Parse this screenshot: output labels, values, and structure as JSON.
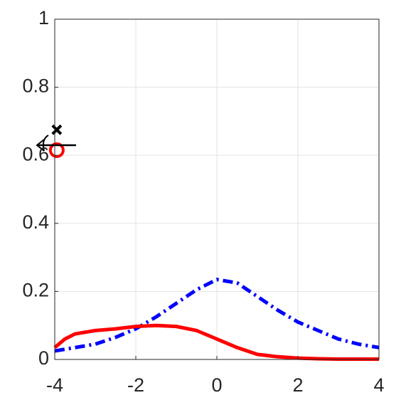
{
  "chart_data": {
    "type": "line",
    "xlim": [
      -4,
      4
    ],
    "xticks": [
      -4,
      -2,
      0,
      2,
      4
    ],
    "ylim": [
      0,
      1
    ],
    "yticks": [
      0,
      0.2,
      0.4,
      0.6,
      0.8,
      1
    ],
    "grid": true,
    "series": [
      {
        "color": "#0000ff",
        "dash": "dashdot",
        "x": [
          -4,
          -3.5,
          -3,
          -2.5,
          -2,
          -1.5,
          -1,
          -0.5,
          0,
          0.5,
          1,
          1.5,
          2,
          2.5,
          3,
          3.5,
          4
        ],
        "values": [
          0.025,
          0.035,
          0.045,
          0.065,
          0.09,
          0.125,
          0.165,
          0.205,
          0.235,
          0.225,
          0.185,
          0.145,
          0.11,
          0.085,
          0.06,
          0.045,
          0.035
        ]
      },
      {
        "color": "#ff0000",
        "dash": "solid",
        "x": [
          -4,
          -3.75,
          -3.5,
          -3,
          -2.5,
          -2,
          -1.5,
          -1,
          -0.5,
          0,
          0.5,
          1,
          1.5,
          2,
          2.5,
          3,
          3.5,
          4
        ],
        "values": [
          0.035,
          0.06,
          0.075,
          0.085,
          0.09,
          0.097,
          0.1,
          0.097,
          0.085,
          0.06,
          0.035,
          0.015,
          0.008,
          0.004,
          0.002,
          0.001,
          0.001,
          0.001
        ]
      },
      {
        "color": "#000000",
        "marker": "x",
        "x": [
          -3.95
        ],
        "values": [
          0.675
        ]
      },
      {
        "color": "#ff0000",
        "marker": "o",
        "x": [
          -3.95
        ],
        "values": [
          0.615
        ]
      }
    ]
  }
}
